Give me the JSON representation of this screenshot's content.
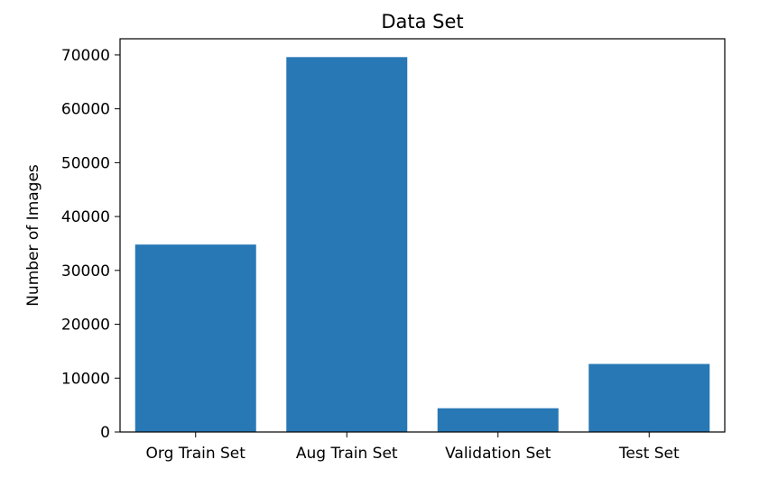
{
  "chart_data": {
    "type": "bar",
    "title": "Data Set",
    "xlabel": "",
    "ylabel": "Number of Images",
    "categories": [
      "Org Train Set",
      "Aug Train Set",
      "Validation Set",
      "Test Set"
    ],
    "values": [
      34799,
      69598,
      4410,
      12630
    ],
    "ylim": [
      0,
      73000
    ],
    "yticks": [
      0,
      10000,
      20000,
      30000,
      40000,
      50000,
      60000,
      70000
    ],
    "grid": false,
    "bar_color": "#2878b5"
  }
}
